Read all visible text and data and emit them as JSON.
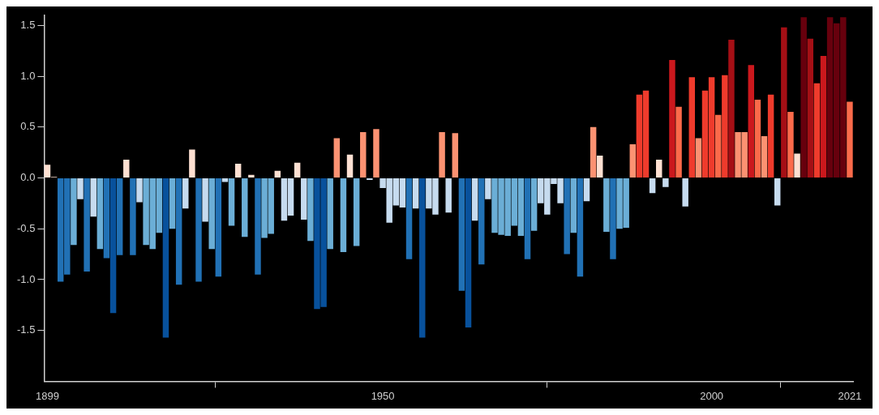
{
  "chart_data": {
    "type": "bar",
    "x": [
      1899,
      1900,
      1901,
      1902,
      1903,
      1904,
      1905,
      1906,
      1907,
      1908,
      1909,
      1910,
      1911,
      1912,
      1913,
      1914,
      1915,
      1916,
      1917,
      1918,
      1919,
      1920,
      1921,
      1922,
      1923,
      1924,
      1925,
      1926,
      1927,
      1928,
      1929,
      1930,
      1931,
      1932,
      1933,
      1934,
      1935,
      1936,
      1937,
      1938,
      1939,
      1940,
      1941,
      1942,
      1943,
      1944,
      1945,
      1946,
      1947,
      1948,
      1949,
      1950,
      1951,
      1952,
      1953,
      1954,
      1955,
      1956,
      1957,
      1958,
      1959,
      1960,
      1961,
      1962,
      1963,
      1964,
      1965,
      1966,
      1967,
      1968,
      1969,
      1970,
      1971,
      1972,
      1973,
      1974,
      1975,
      1976,
      1977,
      1978,
      1979,
      1980,
      1981,
      1982,
      1983,
      1984,
      1985,
      1986,
      1987,
      1988,
      1989,
      1990,
      1991,
      1992,
      1993,
      1994,
      1995,
      1996,
      1997,
      1998,
      1999,
      2000,
      2001,
      2002,
      2003,
      2004,
      2005,
      2006,
      2007,
      2008,
      2009,
      2010,
      2011,
      2012,
      2013,
      2014,
      2015,
      2016,
      2017,
      2018,
      2019,
      2020,
      2021
    ],
    "values": [
      0.13,
      0.01,
      -1.02,
      -0.95,
      -0.66,
      -0.21,
      -0.92,
      -0.38,
      -0.7,
      -0.79,
      -1.33,
      -0.76,
      0.18,
      -0.76,
      -0.24,
      -0.66,
      -0.7,
      -0.54,
      -1.57,
      -0.5,
      -1.05,
      -0.3,
      0.28,
      -1.02,
      -0.43,
      -0.7,
      -0.97,
      -0.04,
      -0.47,
      0.14,
      -0.58,
      0.03,
      -0.95,
      -0.59,
      -0.55,
      0.07,
      -0.42,
      -0.37,
      0.15,
      -0.41,
      -0.62,
      -1.29,
      -1.27,
      -0.7,
      0.39,
      -0.73,
      0.23,
      -0.67,
      0.45,
      -0.02,
      0.48,
      -0.1,
      -0.44,
      -0.27,
      -0.29,
      -0.8,
      -0.3,
      -1.57,
      -0.3,
      -0.36,
      0.45,
      -0.34,
      0.44,
      -1.11,
      -1.47,
      -0.42,
      -0.85,
      -0.21,
      -0.54,
      -0.56,
      -0.57,
      -0.47,
      -0.57,
      -0.8,
      -0.52,
      -0.25,
      -0.36,
      -0.06,
      -0.25,
      -0.75,
      -0.54,
      -0.97,
      -0.23,
      0.5,
      0.22,
      -0.53,
      -0.8,
      -0.5,
      -0.49,
      0.33,
      0.82,
      0.86,
      -0.15,
      0.18,
      -0.09,
      1.16,
      0.7,
      -0.28,
      0.99,
      0.39,
      0.86,
      0.99,
      0.62,
      1.01,
      1.36,
      0.45,
      0.45,
      1.11,
      0.77,
      0.41,
      0.82,
      -0.27,
      1.48,
      0.65,
      0.24,
      1.58,
      1.37,
      0.93,
      1.2,
      1.58,
      1.52,
      1.58,
      0.75
    ],
    "colors": [
      "#fee0d2",
      "#fee0d2",
      "#2171b5",
      "#2171b5",
      "#6baed6",
      "#c6dbef",
      "#2171b5",
      "#c6dbef",
      "#6baed6",
      "#2171b5",
      "#08519c",
      "#2171b5",
      "#fee0d2",
      "#2171b5",
      "#c6dbef",
      "#6baed6",
      "#6baed6",
      "#6baed6",
      "#08519c",
      "#6baed6",
      "#2171b5",
      "#c6dbef",
      "#fee0d2",
      "#2171b5",
      "#c6dbef",
      "#6baed6",
      "#2171b5",
      "#c6dbef",
      "#6baed6",
      "#fee0d2",
      "#6baed6",
      "#fee0d2",
      "#2171b5",
      "#6baed6",
      "#6baed6",
      "#fee0d2",
      "#c6dbef",
      "#c6dbef",
      "#fee0d2",
      "#c6dbef",
      "#6baed6",
      "#08519c",
      "#08519c",
      "#6baed6",
      "#fc9272",
      "#6baed6",
      "#fee0d2",
      "#6baed6",
      "#fc9272",
      "#c6dbef",
      "#fc9272",
      "#c6dbef",
      "#c6dbef",
      "#c6dbef",
      "#c6dbef",
      "#2171b5",
      "#c6dbef",
      "#08519c",
      "#c6dbef",
      "#c6dbef",
      "#fc9272",
      "#c6dbef",
      "#fc9272",
      "#2171b5",
      "#08519c",
      "#c6dbef",
      "#2171b5",
      "#c6dbef",
      "#6baed6",
      "#6baed6",
      "#6baed6",
      "#6baed6",
      "#6baed6",
      "#2171b5",
      "#6baed6",
      "#c6dbef",
      "#c6dbef",
      "#c6dbef",
      "#c6dbef",
      "#2171b5",
      "#6baed6",
      "#2171b5",
      "#c6dbef",
      "#fc9272",
      "#fee0d2",
      "#6baed6",
      "#2171b5",
      "#6baed6",
      "#6baed6",
      "#fc9272",
      "#ef3b2c",
      "#ef3b2c",
      "#c6dbef",
      "#fee0d2",
      "#c6dbef",
      "#cb181d",
      "#fb6a4a",
      "#c6dbef",
      "#ef3b2c",
      "#fc9272",
      "#ef3b2c",
      "#ef3b2c",
      "#fb6a4a",
      "#ef3b2c",
      "#a50f15",
      "#fc9272",
      "#fc9272",
      "#cb181d",
      "#fb6a4a",
      "#fc9272",
      "#ef3b2c",
      "#c6dbef",
      "#a50f15",
      "#fb6a4a",
      "#fee0d2",
      "#67000d",
      "#a50f15",
      "#ef3b2c",
      "#cb181d",
      "#67000d",
      "#67000d",
      "#67000d",
      "#fb6a4a"
    ],
    "xlim": [
      1898.5,
      2021.5
    ],
    "xticks": [
      1899,
      1950,
      2000,
      2021
    ],
    "ylim": [
      -2.0,
      1.6
    ],
    "yticks": [
      -1.5,
      {
        "value": -1,
        "label": "-1.0"
      },
      -0.5,
      {
        "value": 0,
        "label": "0.0"
      },
      0.5,
      {
        "value": 1,
        "label": "1.0"
      },
      1.5
    ],
    "grid": false
  }
}
